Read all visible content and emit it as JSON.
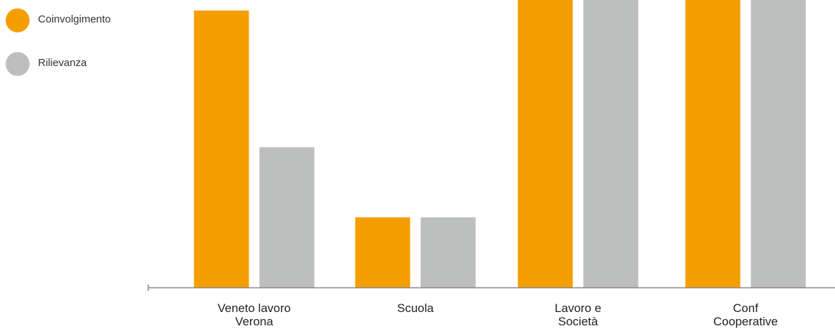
{
  "chart_data": {
    "type": "bar",
    "categories": [
      [
        "Veneto lavoro",
        "Verona"
      ],
      [
        "Scuola"
      ],
      [
        "Lavoro e",
        "Società"
      ],
      [
        "Conf",
        "Cooperative"
      ]
    ],
    "series": [
      {
        "name": "Coinvolgimento",
        "color": "#F59E00",
        "values": [
          3.95,
          1.0,
          4.2,
          4.2
        ]
      },
      {
        "name": "Rilievanza",
        "color": "#BDBEBE",
        "values": [
          2.0,
          1.0,
          4.2,
          4.2
        ]
      }
    ],
    "ylim": [
      0,
      4.1
    ],
    "grid": false,
    "legend_position": "top-left"
  }
}
